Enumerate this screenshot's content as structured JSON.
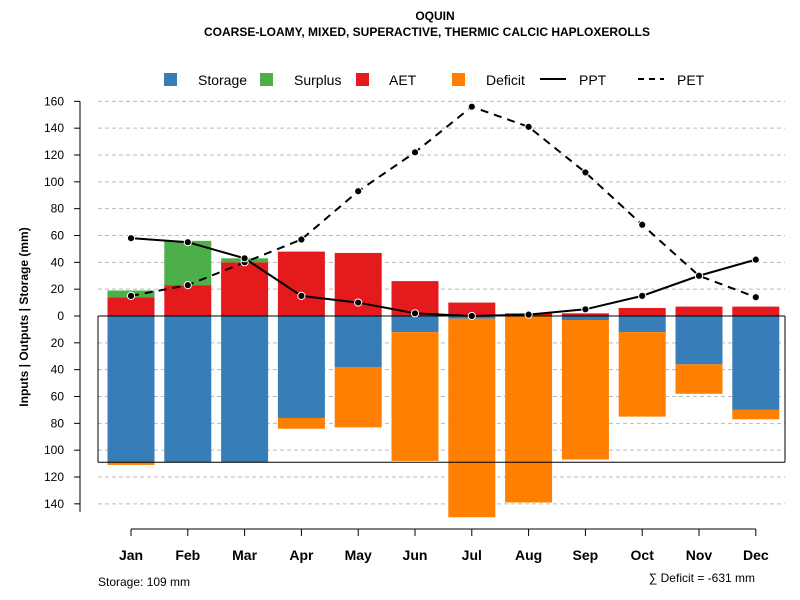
{
  "chart_data": {
    "type": "bar",
    "title": "OQUIN",
    "subtitle": "COARSE-LOAMY, MIXED, SUPERACTIVE, THERMIC CALCIC HAPLOXEROLLS",
    "ylabel": "Inputs | Outputs | Storage    (mm)",
    "ylim": [
      -150,
      160
    ],
    "y_ticks": [
      160,
      140,
      120,
      100,
      80,
      60,
      40,
      20,
      0,
      -20,
      -40,
      -60,
      -80,
      -100,
      -120,
      -140
    ],
    "y_tick_labels": [
      "160",
      "140",
      "120",
      "100",
      "80",
      "60",
      "40",
      "20",
      "0",
      "20",
      "40",
      "60",
      "80",
      "100",
      "120",
      "140"
    ],
    "categories": [
      "Jan",
      "Feb",
      "Mar",
      "Apr",
      "May",
      "Jun",
      "Jul",
      "Aug",
      "Sep",
      "Oct",
      "Nov",
      "Dec"
    ],
    "storage_capacity": 109,
    "legend": {
      "storage": "Storage",
      "surplus": "Surplus",
      "aet": "AET",
      "deficit": "Deficit",
      "ppt": "PPT",
      "pet": "PET"
    },
    "colors": {
      "storage": "#377eb8",
      "surplus": "#4daf4a",
      "aet": "#e41a1c",
      "deficit": "#ff7f00",
      "line": "#000000",
      "grid": "#bbbbbb"
    },
    "series": [
      {
        "name": "Storage",
        "values": [
          109,
          109,
          109,
          76,
          38,
          12,
          2,
          0,
          3,
          12,
          36,
          70
        ]
      },
      {
        "name": "Deficit",
        "values": [
          2,
          0,
          0,
          8,
          45,
          96,
          148,
          139,
          104,
          63,
          22,
          7
        ]
      },
      {
        "name": "AET",
        "values": [
          14,
          23,
          40,
          48,
          47,
          26,
          10,
          2,
          2,
          6,
          7,
          7
        ]
      },
      {
        "name": "Surplus",
        "values": [
          5,
          33,
          3,
          0,
          0,
          0,
          0,
          0,
          0,
          0,
          0,
          0
        ]
      },
      {
        "name": "PPT",
        "values": [
          58,
          55,
          43,
          15,
          10,
          2,
          0,
          1,
          5,
          15,
          30,
          42
        ]
      },
      {
        "name": "PET",
        "values": [
          15,
          23,
          40,
          57,
          93,
          122,
          156,
          141,
          107,
          68,
          30,
          14
        ]
      }
    ],
    "footer_left": "Storage: 109 mm",
    "footer_right": "∑ Deficit = -631 mm"
  }
}
